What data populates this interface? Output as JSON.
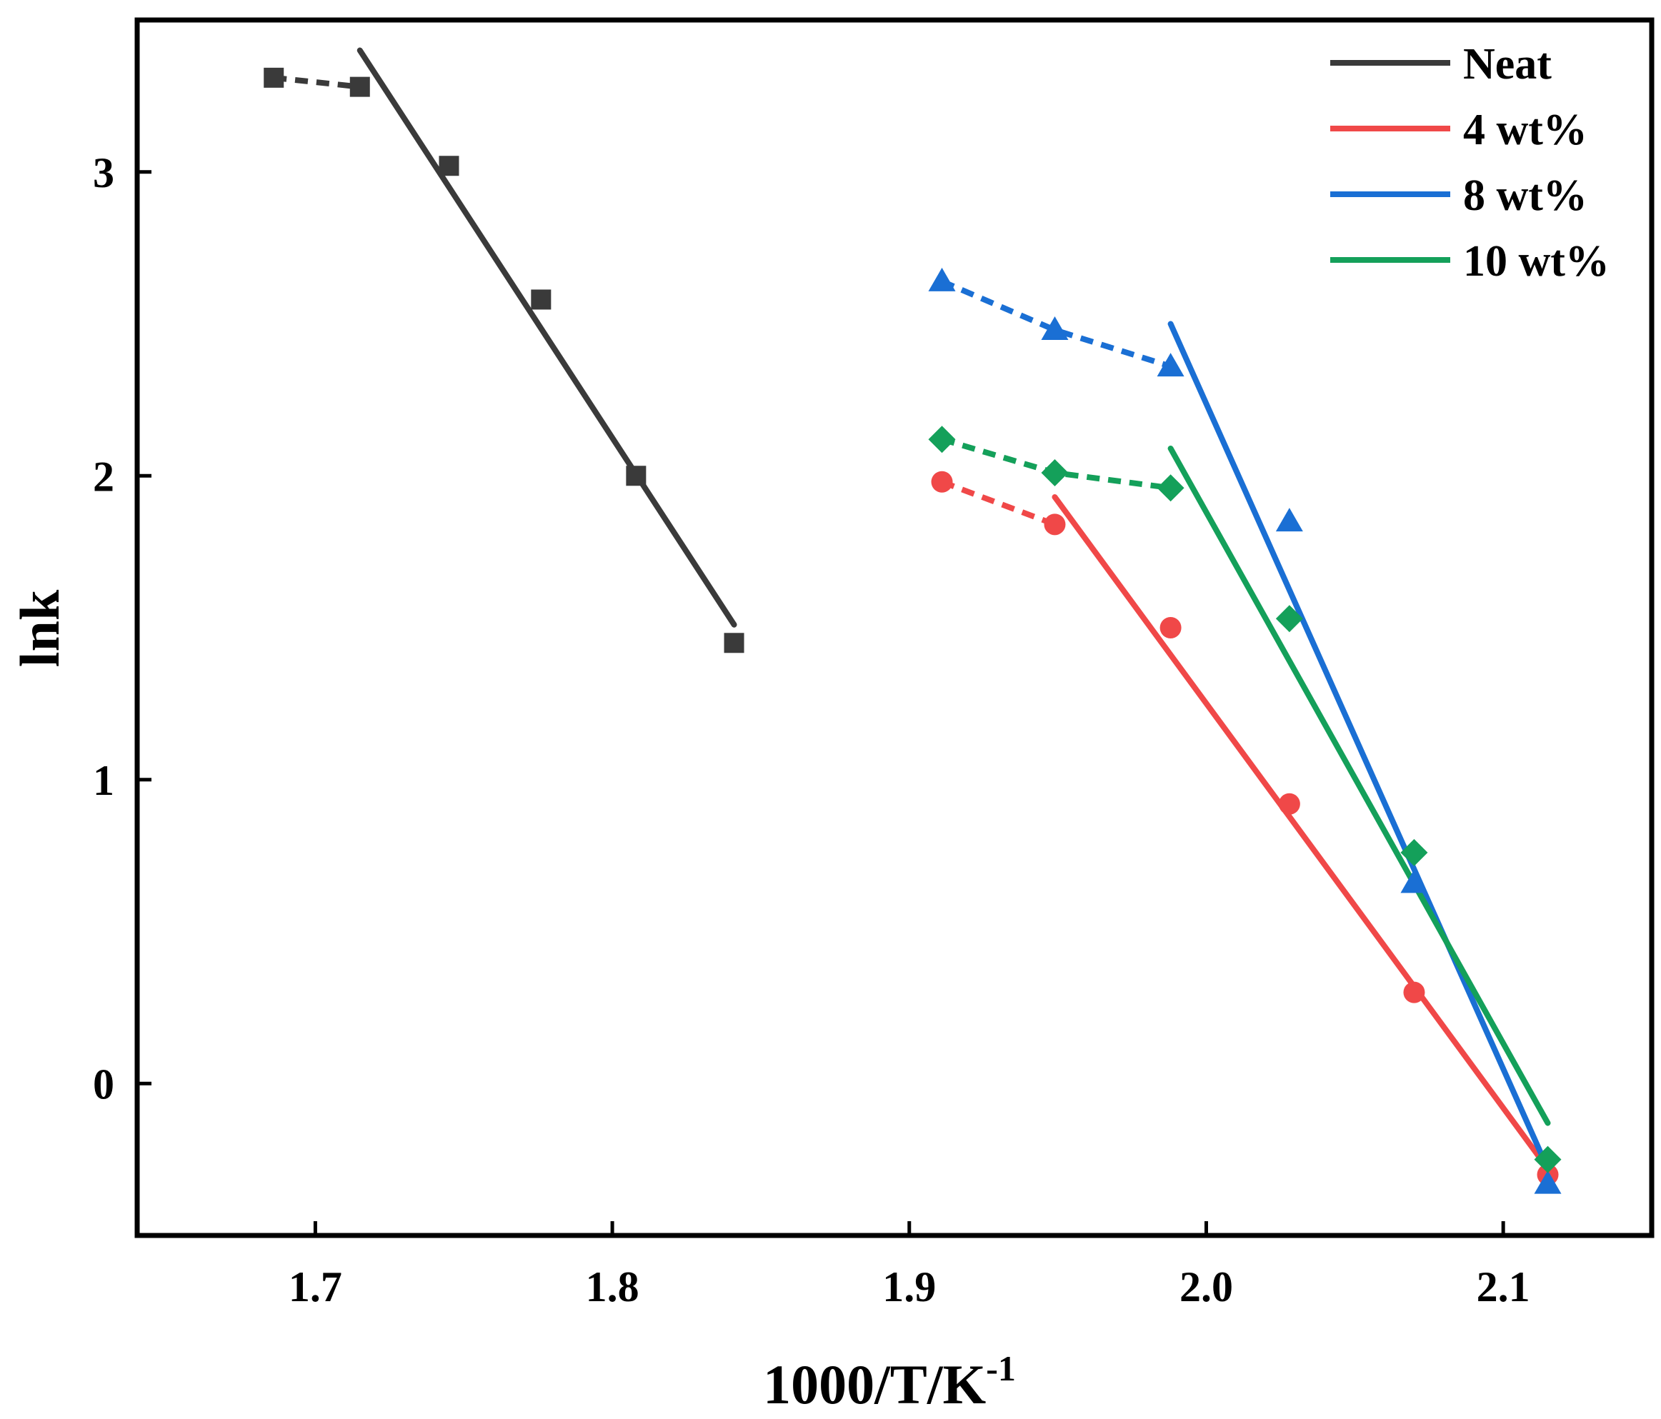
{
  "chart_data": {
    "type": "scatter",
    "title": "",
    "xlabel": "1000/T/K",
    "xlabel_superscript": "-1",
    "ylabel": "lnk",
    "xlim": [
      1.64,
      2.15
    ],
    "ylim": [
      -0.5,
      3.5
    ],
    "xticks": [
      "1.7",
      "1.8",
      "1.9",
      "2.0",
      "2.1"
    ],
    "yticks": [
      "0",
      "1",
      "2",
      "3"
    ],
    "xtick_values": [
      1.7,
      1.8,
      1.9,
      2.0,
      2.1
    ],
    "ytick_values": [
      0,
      1,
      2,
      3
    ],
    "grid": false,
    "legend_position": "top-right",
    "series": [
      {
        "name": "Neat",
        "color": "#3a3a3a",
        "marker": "square",
        "x": [
          1.686,
          1.715,
          1.745,
          1.776,
          1.808,
          1.841
        ],
        "y": [
          3.31,
          3.28,
          3.02,
          2.58,
          2.0,
          1.45
        ],
        "dashed_segment": {
          "x": [
            1.686,
            1.715
          ],
          "y": [
            3.31,
            3.28
          ]
        },
        "fit_line": {
          "x": [
            1.715,
            1.841
          ],
          "y": [
            3.4,
            1.51
          ]
        }
      },
      {
        "name": "4 wt%",
        "color": "#f04848",
        "marker": "circle",
        "x": [
          1.911,
          1.949,
          1.988,
          2.028,
          2.07,
          2.115
        ],
        "y": [
          1.98,
          1.84,
          1.5,
          0.92,
          0.3,
          -0.3
        ],
        "dashed_segment": {
          "x": [
            1.911,
            1.949
          ],
          "y": [
            1.98,
            1.84
          ]
        },
        "fit_line": {
          "x": [
            1.949,
            2.115
          ],
          "y": [
            1.93,
            -0.28
          ]
        }
      },
      {
        "name": "8 wt%",
        "color": "#1a6fd4",
        "marker": "triangle",
        "x": [
          1.911,
          1.949,
          1.988,
          2.028,
          2.07,
          2.115
        ],
        "y": [
          2.64,
          2.48,
          2.36,
          1.85,
          0.66,
          -0.33
        ],
        "dashed_segment": {
          "x": [
            1.911,
            1.949,
            1.988
          ],
          "y": [
            2.64,
            2.48,
            2.36
          ]
        },
        "fit_line": {
          "x": [
            1.988,
            2.115
          ],
          "y": [
            2.5,
            -0.28
          ]
        }
      },
      {
        "name": "10 wt%",
        "color": "#14a05a",
        "marker": "diamond",
        "x": [
          1.911,
          1.949,
          1.988,
          2.028,
          2.07,
          2.115
        ],
        "y": [
          2.12,
          2.01,
          1.96,
          1.53,
          0.76,
          -0.25
        ],
        "dashed_segment": {
          "x": [
            1.911,
            1.949,
            1.988
          ],
          "y": [
            2.12,
            2.01,
            1.96
          ]
        },
        "fit_line": {
          "x": [
            1.988,
            2.115
          ],
          "y": [
            2.09,
            -0.13
          ]
        }
      }
    ]
  }
}
